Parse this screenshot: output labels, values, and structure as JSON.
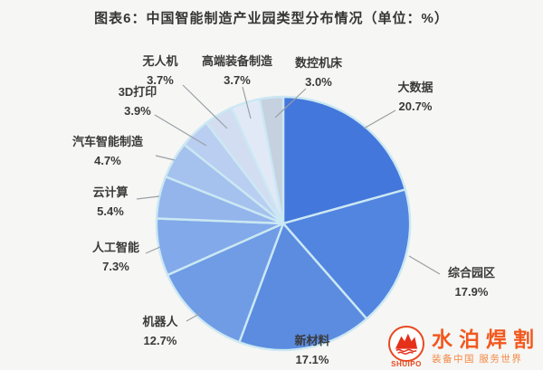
{
  "title": "图表6：中国智能制造产业园类型分布情况（单位：%）",
  "chart_data": {
    "type": "pie",
    "title": "图表6：中国智能制造产业园类型分布情况",
    "unit": "%",
    "start_angle": "top",
    "direction": "clockwise",
    "legend": "none",
    "divider_color": "#cbe8f3",
    "leader_line_color": "#9aa0a6",
    "slices": [
      {
        "label": "大数据",
        "value": 20.7,
        "color": "#4477dc"
      },
      {
        "label": "综合园区",
        "value": 17.9,
        "color": "#5285e0"
      },
      {
        "label": "新材料",
        "value": 17.1,
        "color": "#5b8ce0"
      },
      {
        "label": "机器人",
        "value": 12.7,
        "color": "#6f9ce5"
      },
      {
        "label": "人工智能",
        "value": 7.3,
        "color": "#82a9e9"
      },
      {
        "label": "云计算",
        "value": 5.4,
        "color": "#93b5ec"
      },
      {
        "label": "汽车智能制造",
        "value": 4.7,
        "color": "#a5c1ee"
      },
      {
        "label": "3D打印",
        "value": 3.9,
        "color": "#b9cef1"
      },
      {
        "label": "无人机",
        "value": 3.7,
        "color": "#d2ddf2"
      },
      {
        "label": "高端装备制造",
        "value": 3.7,
        "color": "#e2e9f6"
      },
      {
        "label": "数控机床",
        "value": 3.0,
        "color": "#c6d1e0"
      }
    ]
  },
  "watermark": {
    "logo_text": "SHUIPO",
    "brand": "水泊焊割",
    "tagline": "装备中国 服务世界",
    "color": "#f2581e"
  }
}
